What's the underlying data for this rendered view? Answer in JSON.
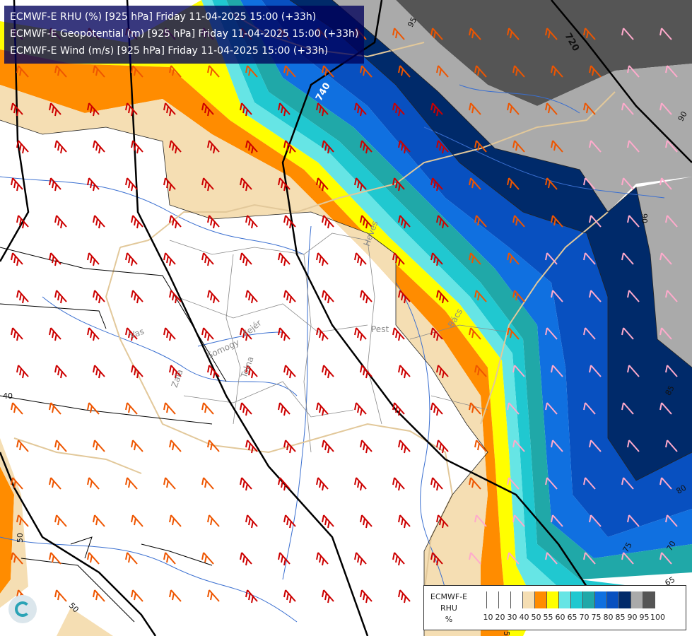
{
  "header": {
    "line1": "ECMWF-E RHU (%) [925 hPa] Friday 11-04-2025 15:00 (+33h)",
    "line2": "ECMWF-E Geopotential (m) [925 hPa] Friday 11-04-2025 15:00 (+33h)",
    "line3": "ECMWF-E Wind (m/s) [925 hPa] Friday 11-04-2025 15:00 (+33h)"
  },
  "legend": {
    "title_lines": [
      "ECMWF-E",
      "RHU",
      "%"
    ],
    "ticks": [
      "10",
      "20",
      "30",
      "40",
      "50",
      "55",
      "60",
      "65",
      "70",
      "75",
      "80",
      "85",
      "90",
      "95",
      "100"
    ],
    "colors": [
      "#ffffff",
      "#ffffff",
      "#ffffff",
      "#ffffff",
      "#f5deb3",
      "#ff8c00",
      "#ffff00",
      "#66e5e5",
      "#20c8d0",
      "#20a8a8",
      "#1070e0",
      "#0850c0",
      "#002a6a",
      "#aaaaaa",
      "#555555"
    ]
  },
  "contours": {
    "geopotential": [
      "720",
      "740"
    ],
    "rhu": [
      "95",
      "90",
      "90",
      "85",
      "80",
      "75",
      "70",
      "65",
      "50",
      "50",
      "55",
      "40"
    ]
  },
  "places": [
    "Vas",
    "Zala",
    "Somogy",
    "Fejér",
    "Tolna",
    "Pest",
    "Heves",
    "Bács"
  ],
  "rh_band_colors": {
    "dry": "#ffffff",
    "50": "#f5deb3",
    "55": "#ff8c00",
    "60": "#ffff00",
    "65": "#66e5e5",
    "70": "#20c8d0",
    "75": "#20a8a8",
    "80": "#1070e0",
    "85": "#0850c0",
    "90": "#002a6a",
    "95": "#aaaaaa",
    "100": "#555555"
  },
  "wind_barb_colors": {
    "strong": "#cc0000",
    "moderate": "#ee5500",
    "weak": "#ffaacc"
  }
}
